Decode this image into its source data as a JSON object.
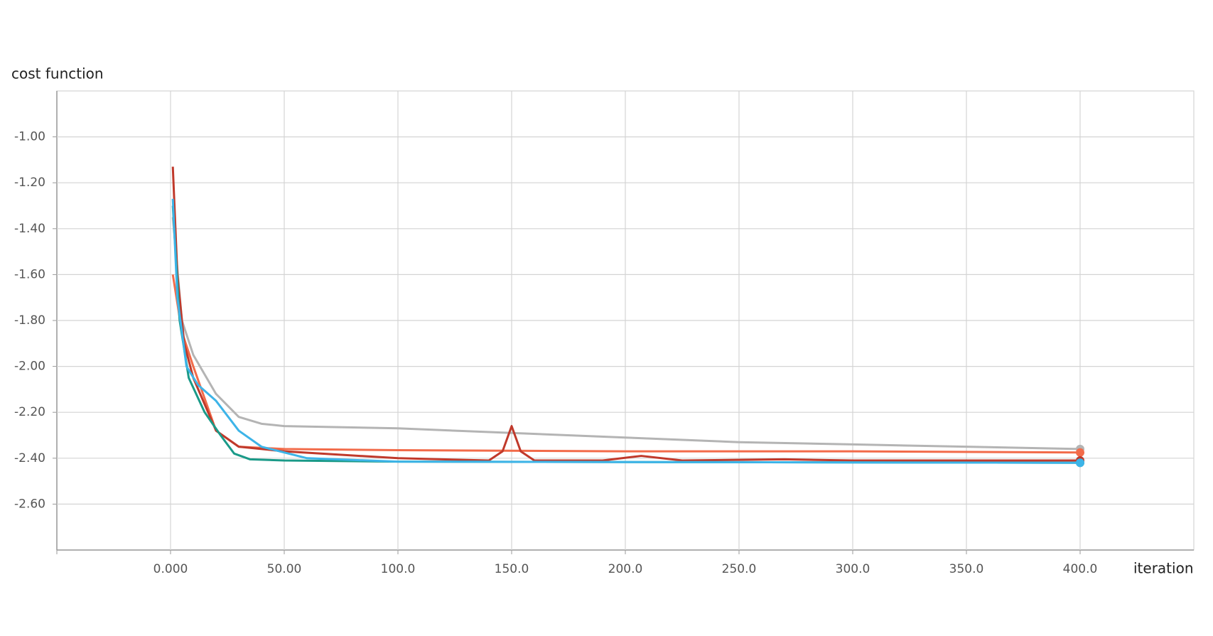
{
  "chart_data": {
    "type": "line",
    "y_label": "cost function",
    "x_label": "iteration",
    "xlim": [
      -50,
      450
    ],
    "ylim": [
      -2.8,
      -0.8
    ],
    "xticks": [
      {
        "value": 0,
        "label": "0.000"
      },
      {
        "value": 50,
        "label": "50.00"
      },
      {
        "value": 100,
        "label": "100.0"
      },
      {
        "value": 150,
        "label": "150.0"
      },
      {
        "value": 200,
        "label": "200.0"
      },
      {
        "value": 250,
        "label": "250.0"
      },
      {
        "value": 300,
        "label": "300.0"
      },
      {
        "value": 350,
        "label": "350.0"
      },
      {
        "value": 400,
        "label": "400.0"
      }
    ],
    "yticks": [
      {
        "value": -1,
        "label": "-1.00"
      },
      {
        "value": -1.2,
        "label": "-1.20"
      },
      {
        "value": -1.4,
        "label": "-1.40"
      },
      {
        "value": -1.6,
        "label": "-1.60"
      },
      {
        "value": -1.8,
        "label": "-1.80"
      },
      {
        "value": -2,
        "label": "-2.00"
      },
      {
        "value": -2.2,
        "label": "-2.20"
      },
      {
        "value": -2.4,
        "label": "-2.40"
      },
      {
        "value": -2.6,
        "label": "-2.60"
      }
    ],
    "grid": true,
    "series": [
      {
        "color": "#b4b4b4",
        "x": [
          1,
          5,
          10,
          20,
          30,
          40,
          50,
          100,
          150,
          200,
          250,
          300,
          350,
          400
        ],
        "values": [
          -1.35,
          -1.8,
          -1.95,
          -2.12,
          -2.22,
          -2.25,
          -2.26,
          -2.27,
          -2.29,
          -2.31,
          -2.33,
          -2.34,
          -2.35,
          -2.36
        ]
      },
      {
        "color": "#f26b4a",
        "x": [
          1,
          5,
          10,
          20,
          30,
          50,
          100,
          200,
          300,
          400
        ],
        "values": [
          -1.6,
          -1.85,
          -2.0,
          -2.28,
          -2.35,
          -2.36,
          -2.365,
          -2.37,
          -2.37,
          -2.375
        ]
      },
      {
        "color": "#c0392b",
        "x": [
          1,
          3,
          6,
          10,
          20,
          30,
          50,
          100,
          140,
          146,
          150,
          154,
          160,
          190,
          207,
          225,
          270,
          300,
          400
        ],
        "values": [
          -1.13,
          -1.6,
          -1.9,
          -2.05,
          -2.28,
          -2.35,
          -2.37,
          -2.4,
          -2.41,
          -2.37,
          -2.26,
          -2.37,
          -2.41,
          -2.41,
          -2.39,
          -2.41,
          -2.405,
          -2.41,
          -2.41
        ]
      },
      {
        "color": "#1a9a88",
        "x": [
          1,
          4,
          8,
          15,
          22,
          28,
          35,
          50,
          100,
          400
        ],
        "values": [
          -1.3,
          -1.8,
          -2.05,
          -2.2,
          -2.3,
          -2.38,
          -2.405,
          -2.41,
          -2.415,
          -2.42
        ]
      },
      {
        "color": "#3db4e8",
        "x": [
          1,
          3,
          7,
          12,
          20,
          30,
          40,
          60,
          100,
          400
        ],
        "values": [
          -1.27,
          -1.7,
          -2.0,
          -2.08,
          -2.15,
          -2.28,
          -2.35,
          -2.4,
          -2.415,
          -2.42
        ]
      }
    ]
  }
}
